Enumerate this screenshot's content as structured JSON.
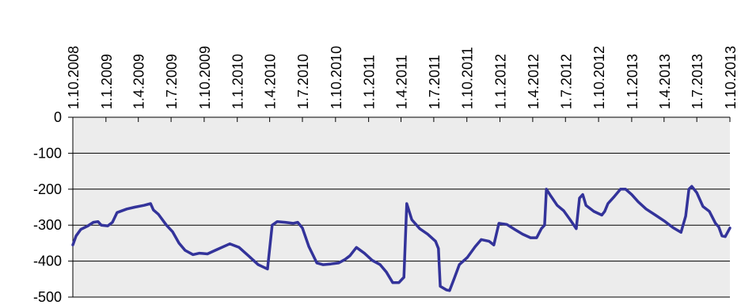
{
  "chart_data": {
    "type": "line",
    "color": "#33339a",
    "grid": true,
    "xlim": [
      "2008-10-01",
      "2013-10-01"
    ],
    "xticks": [
      {
        "value": "2008-10-01",
        "label": "1.10.2008"
      },
      {
        "value": "2009-01-01",
        "label": "1.1.2009"
      },
      {
        "value": "2009-04-01",
        "label": "1.4.2009"
      },
      {
        "value": "2009-07-01",
        "label": "1.7.2009"
      },
      {
        "value": "2009-10-01",
        "label": "1.10.2009"
      },
      {
        "value": "2010-01-01",
        "label": "1.1.2010"
      },
      {
        "value": "2010-04-01",
        "label": "1.4.2010"
      },
      {
        "value": "2010-07-01",
        "label": "1.7.2010"
      },
      {
        "value": "2010-10-01",
        "label": "1.10.2010"
      },
      {
        "value": "2011-01-01",
        "label": "1.1.2011"
      },
      {
        "value": "2011-04-01",
        "label": "1.4.2011"
      },
      {
        "value": "2011-07-01",
        "label": "1.7.2011"
      },
      {
        "value": "2011-10-01",
        "label": "1.10.2011"
      },
      {
        "value": "2012-01-01",
        "label": "1.1.2012"
      },
      {
        "value": "2012-04-01",
        "label": "1.4.2012"
      },
      {
        "value": "2012-07-01",
        "label": "1.7.2012"
      },
      {
        "value": "2012-10-01",
        "label": "1.10.2012"
      },
      {
        "value": "2013-01-01",
        "label": "1.1.2013"
      },
      {
        "value": "2013-04-01",
        "label": "1.4.2013"
      },
      {
        "value": "2013-07-01",
        "label": "1.7.2013"
      },
      {
        "value": "2013-10-01",
        "label": "1.10.2013"
      }
    ],
    "ylim": [
      -500,
      0
    ],
    "yticks": [
      0,
      -100,
      -200,
      -300,
      -400,
      -500
    ],
    "x": [
      "2008-10-01",
      "2008-10-10",
      "2008-10-23",
      "2008-11-10",
      "2008-11-27",
      "2008-12-10",
      "2008-12-19",
      "2009-01-06",
      "2009-01-19",
      "2009-02-01",
      "2009-02-28",
      "2009-03-22",
      "2009-04-17",
      "2009-05-05",
      "2009-05-13",
      "2009-05-27",
      "2009-06-18",
      "2009-07-05",
      "2009-07-23",
      "2009-08-09",
      "2009-08-31",
      "2009-09-18",
      "2009-10-10",
      "2009-11-05",
      "2009-12-11",
      "2010-01-06",
      "2010-02-01",
      "2010-02-28",
      "2010-03-26",
      "2010-04-08",
      "2010-04-22",
      "2010-05-14",
      "2010-06-05",
      "2010-06-18",
      "2010-07-01",
      "2010-07-19",
      "2010-08-10",
      "2010-08-27",
      "2010-09-18",
      "2010-10-10",
      "2010-10-28",
      "2010-11-10",
      "2010-11-28",
      "2010-12-20",
      "2011-01-11",
      "2011-02-02",
      "2011-02-19",
      "2011-03-09",
      "2011-03-26",
      "2011-04-09",
      "2011-04-17",
      "2011-05-01",
      "2011-05-23",
      "2011-06-14",
      "2011-07-06",
      "2011-07-14",
      "2011-07-19",
      "2011-08-05",
      "2011-08-14",
      "2011-08-27",
      "2011-09-10",
      "2011-10-02",
      "2011-10-24",
      "2011-11-10",
      "2011-12-02",
      "2011-12-15",
      "2011-12-29",
      "2012-01-20",
      "2012-02-11",
      "2012-03-04",
      "2012-03-26",
      "2012-04-12",
      "2012-04-25",
      "2012-05-04",
      "2012-05-09",
      "2012-05-22",
      "2012-06-08",
      "2012-06-26",
      "2012-07-14",
      "2012-07-31",
      "2012-08-09",
      "2012-08-18",
      "2012-08-27",
      "2012-09-18",
      "2012-10-10",
      "2012-10-18",
      "2012-10-27",
      "2012-11-14",
      "2012-12-01",
      "2012-12-15",
      "2013-01-01",
      "2013-01-19",
      "2013-02-10",
      "2013-03-08",
      "2013-04-04",
      "2013-04-26",
      "2013-05-18",
      "2013-05-31",
      "2013-06-09",
      "2013-06-17",
      "2013-07-01",
      "2013-07-18",
      "2013-08-05",
      "2013-08-22",
      "2013-08-31",
      "2013-09-09",
      "2013-09-18",
      "2013-10-01"
    ],
    "values": [
      -355,
      -330,
      -312,
      -303,
      -292,
      -290,
      -300,
      -302,
      -292,
      -265,
      -255,
      -250,
      -245,
      -240,
      -258,
      -270,
      -300,
      -318,
      -350,
      -370,
      -382,
      -378,
      -380,
      -368,
      -352,
      -362,
      -385,
      -410,
      -422,
      -300,
      -290,
      -292,
      -295,
      -292,
      -308,
      -360,
      -405,
      -410,
      -408,
      -405,
      -395,
      -385,
      -362,
      -378,
      -398,
      -410,
      -430,
      -460,
      -460,
      -445,
      -240,
      -285,
      -310,
      -325,
      -345,
      -365,
      -470,
      -480,
      -482,
      -448,
      -410,
      -390,
      -360,
      -340,
      -345,
      -355,
      -295,
      -298,
      -312,
      -325,
      -335,
      -335,
      -310,
      -300,
      -200,
      -220,
      -245,
      -260,
      -285,
      -310,
      -225,
      -215,
      -245,
      -262,
      -272,
      -262,
      -240,
      -220,
      -200,
      -200,
      -215,
      -235,
      -255,
      -272,
      -290,
      -307,
      -320,
      -275,
      -200,
      -192,
      -210,
      -248,
      -262,
      -295,
      -305,
      -330,
      -332,
      -308
    ]
  }
}
